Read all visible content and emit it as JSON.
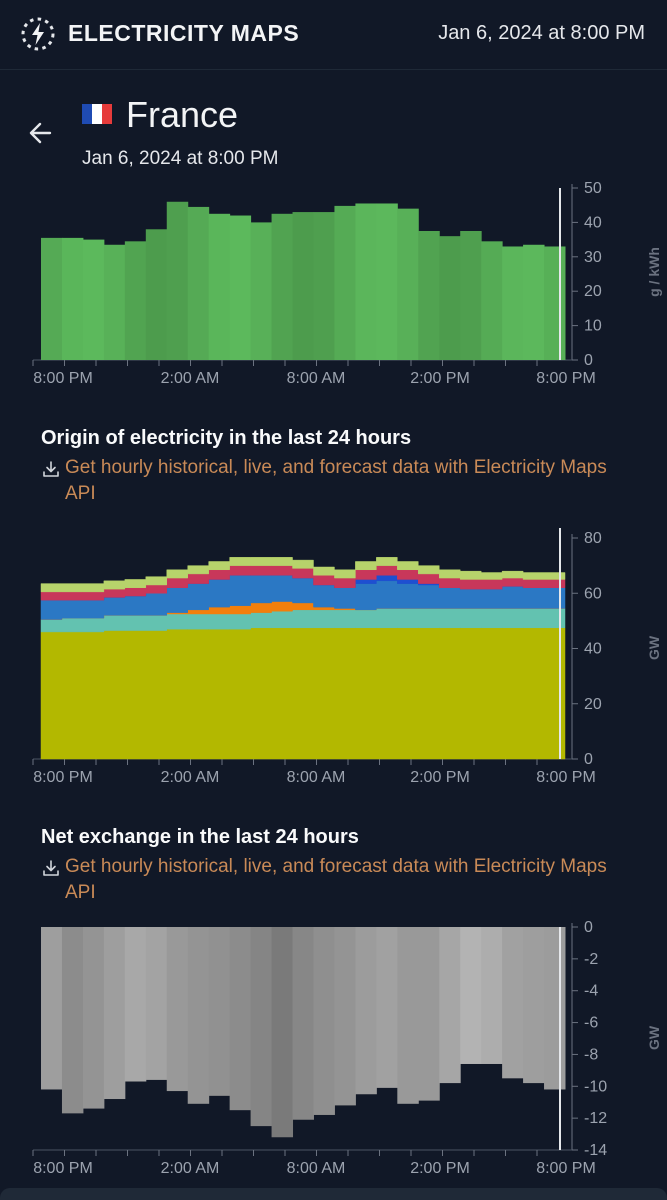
{
  "app": {
    "title": "ELECTRICITY MAPS",
    "datetime": "Jan 6, 2024 at 8:00 PM"
  },
  "zone": {
    "country": "France",
    "datetime": "Jan 6, 2024 at 8:00 PM"
  },
  "colors": {
    "background": "#111827",
    "accent_link": "#c98a57",
    "carbon_green": "#5cb85c",
    "nuclear": "#b3b800",
    "wind": "#63c2b0",
    "hydro": "#2b78c4",
    "gas": "#c8375a",
    "solar": "#f27f0c",
    "biomass": "#b7d36b",
    "exchange_gray": "#9a9a9a"
  },
  "sections": {
    "origin": {
      "title": "Origin of electricity in the last 24 hours"
    },
    "exchange": {
      "title": "Net exchange in the last 24 hours"
    },
    "api_link": "Get hourly historical, live, and forecast data with Electricity Maps API"
  },
  "x_tick_labels": [
    "8:00 PM",
    "2:00 AM",
    "8:00 AM",
    "2:00 PM",
    "8:00 PM"
  ],
  "chart_data": [
    {
      "type": "bar",
      "name": "carbon-intensity",
      "ylabel": "g / kWh",
      "ylim": [
        0,
        50
      ],
      "yticks": [
        0,
        10,
        20,
        30,
        40,
        50
      ],
      "values": [
        35.5,
        35.5,
        35,
        33.5,
        34.5,
        38,
        46,
        44.5,
        42.5,
        42,
        40,
        42.5,
        43,
        43,
        44.8,
        45.5,
        45.5,
        44,
        37.5,
        36,
        37.5,
        34.5,
        33,
        33.5,
        33
      ]
    },
    {
      "type": "area",
      "name": "origin-of-electricity",
      "ylabel": "GW",
      "ylim": [
        0,
        80
      ],
      "yticks": [
        0,
        20,
        40,
        60,
        80
      ],
      "series": [
        {
          "key": "nuclear",
          "values": [
            46,
            46,
            46,
            46.5,
            46.5,
            46.5,
            47,
            47,
            47,
            47,
            47.5,
            47.5,
            47.5,
            47.5,
            47.5,
            47.5,
            47.5,
            47.5,
            47.5,
            47.5,
            47.5,
            47.5,
            47.5,
            47.5,
            47.5
          ]
        },
        {
          "key": "wind",
          "values": [
            4.5,
            5,
            5,
            5.5,
            5.5,
            5.5,
            5.5,
            5.5,
            5.5,
            5.5,
            5.5,
            6,
            6.5,
            6.5,
            6.5,
            6.5,
            7,
            7,
            7,
            7,
            7,
            7,
            7,
            7,
            7
          ]
        },
        {
          "key": "solar",
          "values": [
            0,
            0,
            0,
            0,
            0,
            0,
            0.5,
            1.5,
            2.5,
            3,
            3.5,
            3.5,
            2.5,
            1,
            0.5,
            0,
            0,
            0,
            0,
            0,
            0,
            0,
            0,
            0,
            0
          ]
        },
        {
          "key": "hydro",
          "values": [
            7,
            6.5,
            6.5,
            6.5,
            7,
            8,
            9,
            9.5,
            10,
            11,
            10,
            9.5,
            9,
            8,
            7.5,
            9.5,
            10,
            9,
            8.5,
            7.5,
            7,
            7,
            8,
            7.5,
            7.5
          ]
        },
        {
          "key": "hydro-dark",
          "values": [
            0,
            0,
            0,
            0,
            0,
            0,
            0,
            0,
            0,
            0,
            0,
            0,
            0,
            0,
            0,
            1.5,
            2,
            1.5,
            0.5,
            0,
            0,
            0,
            0,
            0,
            0
          ]
        },
        {
          "key": "gas",
          "values": [
            3,
            3,
            3,
            3,
            3,
            3,
            3.5,
            3.5,
            3.5,
            3.5,
            3.5,
            3.5,
            3.5,
            3.5,
            3.5,
            3.5,
            3.5,
            3.5,
            3.5,
            3.5,
            3.5,
            3.5,
            3,
            3,
            3
          ]
        },
        {
          "key": "biomass",
          "values": [
            3,
            3,
            3,
            3,
            3,
            3,
            3,
            3,
            3,
            3,
            3,
            3,
            3,
            3,
            3,
            3,
            3,
            3,
            3,
            3,
            3,
            2.5,
            2.5,
            2.5,
            2.5
          ]
        }
      ]
    },
    {
      "type": "bar",
      "name": "net-exchange",
      "ylabel": "GW",
      "ylim": [
        -14,
        0
      ],
      "yticks": [
        0,
        -2,
        -4,
        -6,
        -8,
        -10,
        -12,
        -14
      ],
      "values": [
        -10.2,
        -11.7,
        -11.4,
        -10.8,
        -9.7,
        -9.6,
        -10.3,
        -11.1,
        -10.6,
        -11.5,
        -12.5,
        -13.2,
        -12.1,
        -11.8,
        -11.2,
        -10.5,
        -10.1,
        -11.1,
        -10.9,
        -9.8,
        -8.6,
        -8.6,
        -9.5,
        -9.8,
        -10.2
      ]
    }
  ]
}
